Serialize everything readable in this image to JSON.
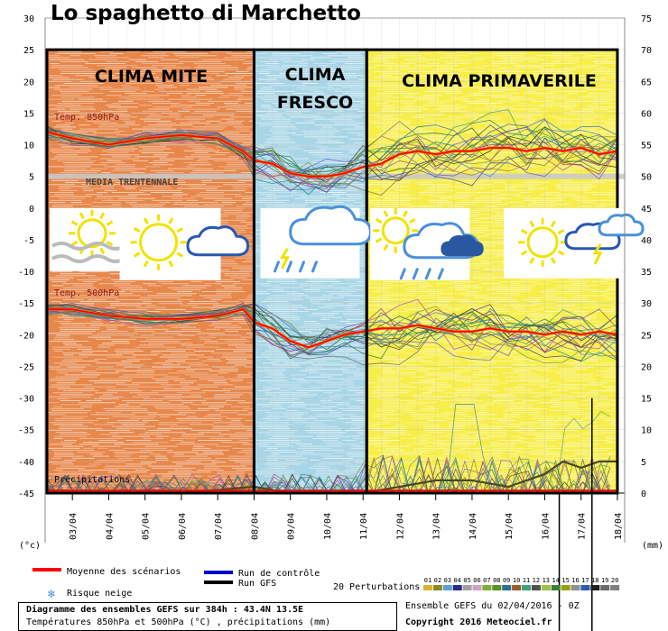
{
  "title": "Lo spaghetto di Marchetto",
  "panels": [
    {
      "label": "CLIMA MITE",
      "color": "#e8874a"
    },
    {
      "label_line1": "CLIMA",
      "label_line2": "FRESCO",
      "color": "#a9d6e6"
    },
    {
      "label": "CLIMA PRIMAVERILE",
      "color": "#f7ee4a"
    }
  ],
  "labels": {
    "temp850": "Temp. 850hPa",
    "temp500": "Temp. 500hPa",
    "media": "MEDIA     TRENTENNALE",
    "precip": "Précipitations",
    "left_unit": "(°c)",
    "right_unit": "(mm)"
  },
  "legend": {
    "mean": "Moyenne des scénarios",
    "control": "Run de contrôle",
    "gfs": "Run GFS",
    "snow": "Risque neige",
    "perturb": "20 Perturbations",
    "perturb_nums": [
      "01",
      "02",
      "03",
      "04",
      "05",
      "06",
      "07",
      "08",
      "09",
      "10",
      "11",
      "12",
      "13",
      "14",
      "15",
      "16",
      "17",
      "18",
      "19",
      "20"
    ],
    "ensemble": "Ensemble GEFS du 02/04/2016 - 0Z",
    "copyright": "Copyright 2016 Meteociel.fr"
  },
  "info": {
    "line1": "Diagramme des ensembles GEFS sur 384h : 43.4N 13.5E",
    "line2": "Températures 850hPa et 500hPa (°C) , précipitations (mm)"
  },
  "colors": {
    "mean": "#ff0000",
    "control": "#0000cc",
    "gfs": "#000000",
    "accent_orange": "#ff8000"
  },
  "chart_data": {
    "type": "line",
    "title": "Lo spaghetto di Marchetto",
    "x_ticks": [
      "03/04",
      "04/04",
      "05/04",
      "06/04",
      "07/04",
      "08/04",
      "09/04",
      "10/04",
      "11/04",
      "12/04",
      "13/04",
      "14/04",
      "15/04",
      "16/04",
      "17/04",
      "18/04"
    ],
    "y_left_ticks": [
      30,
      25,
      20,
      15,
      10,
      5,
      0,
      -5,
      -10,
      -15,
      -20,
      -25,
      -30,
      -35,
      -40,
      -45
    ],
    "y_right_ticks": [
      75,
      70,
      65,
      60,
      55,
      50,
      45,
      40,
      35,
      30,
      25,
      20,
      15,
      10,
      5,
      0
    ],
    "ylim_left": [
      -45,
      30
    ],
    "ylim_right": [
      0,
      75
    ],
    "x_days": [
      2.25,
      18.2
    ],
    "series": [
      {
        "name": "Moyenne des scénarios",
        "group": "850hPa",
        "x": [
          2.3,
          3,
          4,
          5,
          6,
          7,
          7.7,
          8,
          8.5,
          9,
          9.5,
          10,
          10.5,
          11,
          11.5,
          12,
          12.5,
          13,
          13.5,
          14,
          14.5,
          15,
          15.5,
          16,
          16.5,
          17,
          17.5,
          18
        ],
        "y": [
          12,
          11,
          10,
          11,
          11.5,
          11,
          9,
          7.5,
          7,
          5.5,
          5,
          5,
          5.5,
          6.5,
          7,
          8.5,
          9,
          8.5,
          9,
          9,
          9.5,
          9.5,
          9,
          9.5,
          9,
          9.5,
          8.5,
          9
        ]
      },
      {
        "name": "Moyenne des scénarios",
        "group": "500hPa",
        "x": [
          2.3,
          3,
          4,
          5,
          6,
          7,
          7.7,
          8,
          8.5,
          9,
          9.5,
          10,
          10.5,
          11,
          11.5,
          12,
          12.5,
          13,
          13.5,
          14,
          14.5,
          15,
          15.5,
          16,
          16.5,
          17,
          17.5,
          18
        ],
        "y": [
          -16,
          -16,
          -17,
          -17.5,
          -17.5,
          -17,
          -16,
          -18,
          -19,
          -21,
          -22,
          -21,
          -20,
          -19.5,
          -19,
          -19,
          -18.5,
          -19,
          -19.5,
          -19.5,
          -19,
          -19.5,
          -19.5,
          -20,
          -19.5,
          -20,
          -19.5,
          -20
        ]
      },
      {
        "name": "Run GFS",
        "group": "precip_mm",
        "x": [
          2.3,
          6,
          8,
          9,
          10,
          11,
          12,
          13,
          14,
          15,
          16,
          16.5,
          17,
          17.5,
          18
        ],
        "y": [
          0,
          0,
          1,
          0,
          0,
          0,
          1,
          2,
          2,
          1,
          3,
          5,
          4,
          5,
          5
        ]
      }
    ],
    "panels": [
      {
        "label": "CLIMA MITE",
        "from": "02/04",
        "to": "08/04"
      },
      {
        "label": "CLIMA FRESCO",
        "from": "08/04",
        "to": "11/04"
      },
      {
        "label": "CLIMA PRIMAVERILE",
        "from": "11/04",
        "to": "18/04"
      }
    ],
    "reference_line": {
      "label": "MEDIA TRENTENNALE",
      "y": 5
    },
    "grid": true
  }
}
